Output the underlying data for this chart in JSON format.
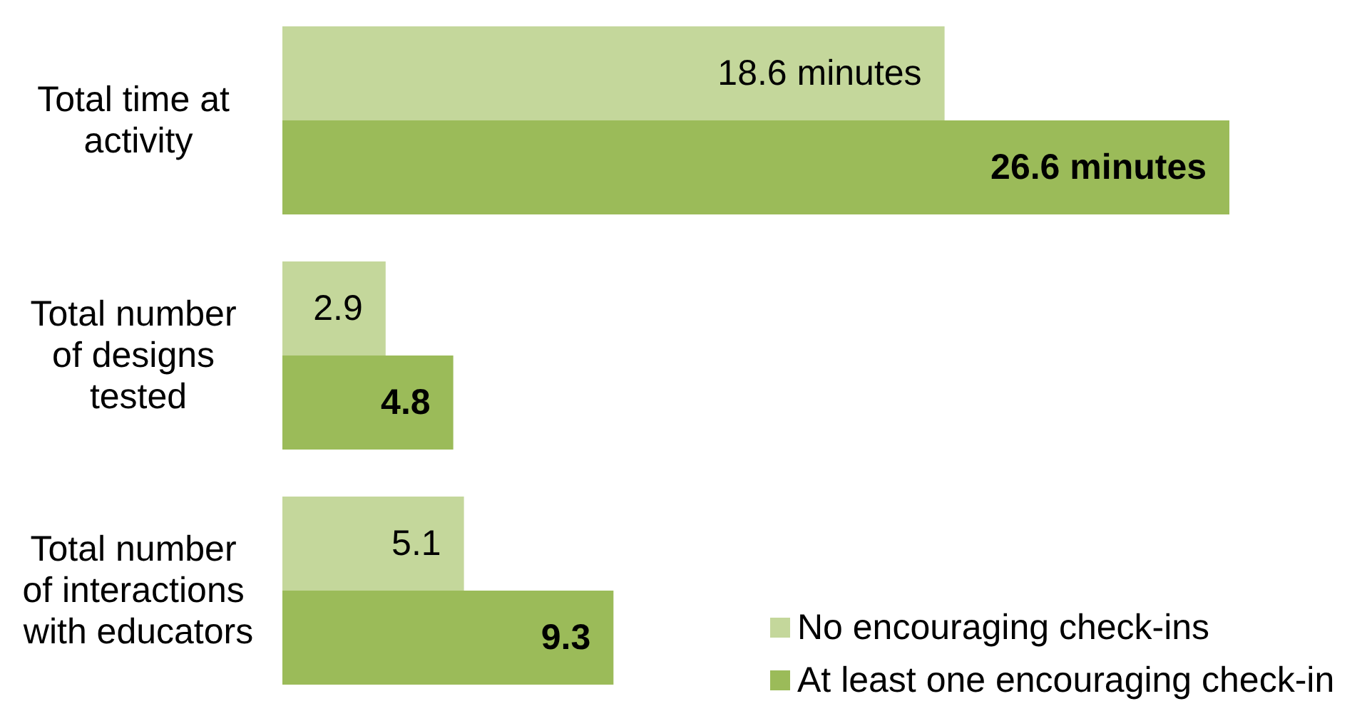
{
  "chart_data": {
    "type": "bar",
    "orientation": "horizontal",
    "categories": [
      "Total time at activity",
      "Total number of designs tested",
      "Total number of interactions with educators"
    ],
    "series": [
      {
        "name": "No encouraging check-ins",
        "color": "#c4d79b",
        "values": [
          18.6,
          2.9,
          5.1
        ],
        "value_labels": [
          "18.6 minutes",
          "2.9",
          "5.1"
        ]
      },
      {
        "name": "At least one encouraging check-in",
        "color": "#9bbb59",
        "values": [
          26.6,
          4.8,
          9.3
        ],
        "value_labels": [
          "26.6 minutes",
          "4.8",
          "9.3"
        ]
      }
    ],
    "legend": "bottom right",
    "grid": false
  }
}
